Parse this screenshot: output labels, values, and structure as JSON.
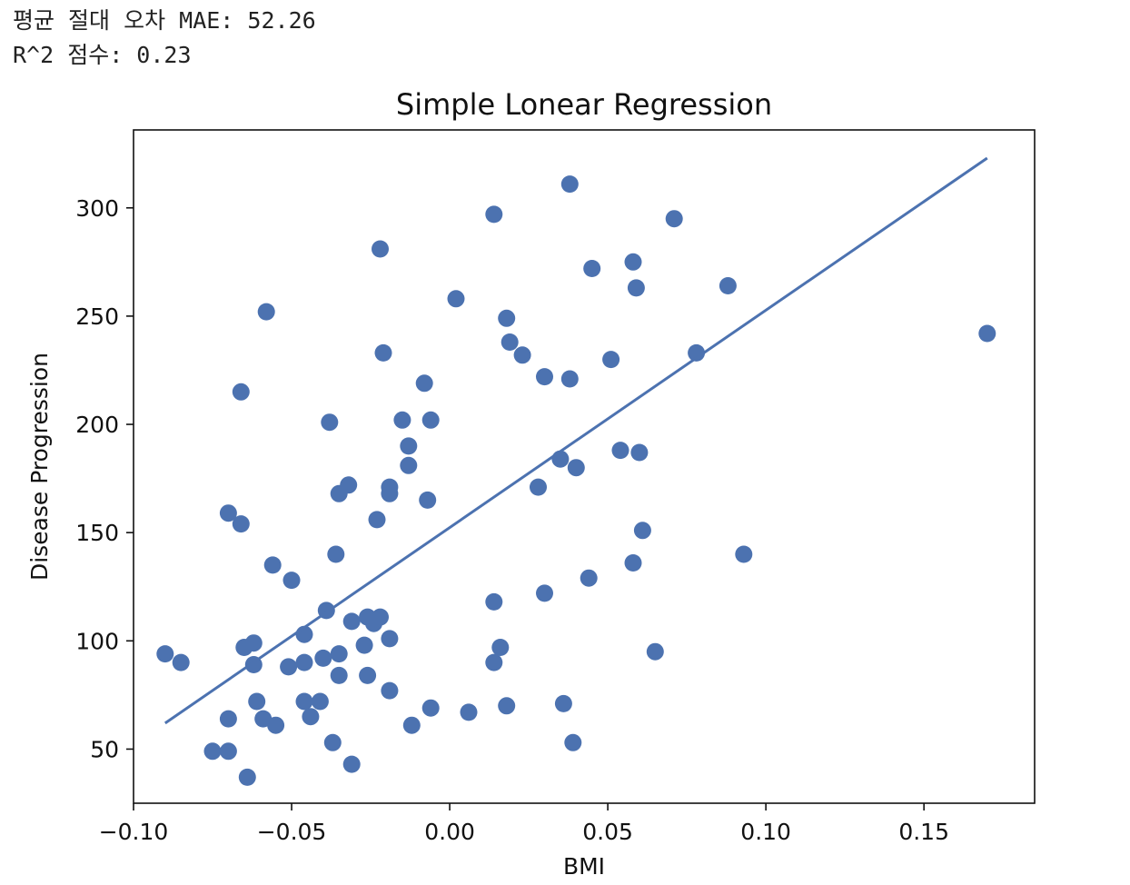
{
  "console": {
    "line1": "평균 절대 오차 MAE: 52.26",
    "line2": "R^2 점수: 0.23"
  },
  "chart_data": {
    "type": "scatter",
    "title": "Simple Lonear Regression",
    "xlabel": "BMI",
    "ylabel": "Disease Progression",
    "xlim": [
      -0.1,
      0.185
    ],
    "ylim": [
      25,
      336
    ],
    "xticks": [
      -0.1,
      -0.05,
      0.0,
      0.05,
      0.1,
      0.15
    ],
    "xtick_labels": [
      "−0.10",
      "−0.05",
      "0.00",
      "0.05",
      "0.10",
      "0.15"
    ],
    "yticks": [
      50,
      100,
      150,
      200,
      250,
      300
    ],
    "ytick_labels": [
      "50",
      "100",
      "150",
      "200",
      "250",
      "300"
    ],
    "grid": false,
    "point_color": "#4c72b0",
    "line_color": "#4c72b0",
    "points": [
      [
        -0.09,
        94
      ],
      [
        -0.085,
        90
      ],
      [
        -0.075,
        49
      ],
      [
        -0.07,
        49
      ],
      [
        -0.07,
        64
      ],
      [
        -0.07,
        159
      ],
      [
        -0.066,
        154
      ],
      [
        -0.066,
        215
      ],
      [
        -0.065,
        97
      ],
      [
        -0.064,
        37
      ],
      [
        -0.062,
        99
      ],
      [
        -0.062,
        89
      ],
      [
        -0.061,
        72
      ],
      [
        -0.059,
        64
      ],
      [
        -0.058,
        252
      ],
      [
        -0.056,
        135
      ],
      [
        -0.055,
        61
      ],
      [
        -0.051,
        88
      ],
      [
        -0.05,
        128
      ],
      [
        -0.046,
        103
      ],
      [
        -0.046,
        90
      ],
      [
        -0.046,
        72
      ],
      [
        -0.044,
        65
      ],
      [
        -0.041,
        72
      ],
      [
        -0.04,
        92
      ],
      [
        -0.039,
        114
      ],
      [
        -0.037,
        53
      ],
      [
        -0.038,
        201
      ],
      [
        -0.036,
        140
      ],
      [
        -0.035,
        94
      ],
      [
        -0.035,
        84
      ],
      [
        -0.035,
        168
      ],
      [
        -0.032,
        172
      ],
      [
        -0.031,
        43
      ],
      [
        -0.031,
        109
      ],
      [
        -0.027,
        98
      ],
      [
        -0.026,
        111
      ],
      [
        -0.026,
        84
      ],
      [
        -0.024,
        108
      ],
      [
        -0.023,
        156
      ],
      [
        -0.022,
        281
      ],
      [
        -0.022,
        111
      ],
      [
        -0.021,
        233
      ],
      [
        -0.019,
        101
      ],
      [
        -0.019,
        77
      ],
      [
        -0.019,
        168
      ],
      [
        -0.019,
        171
      ],
      [
        -0.015,
        202
      ],
      [
        -0.013,
        190
      ],
      [
        -0.013,
        181
      ],
      [
        -0.012,
        61
      ],
      [
        -0.008,
        219
      ],
      [
        -0.007,
        165
      ],
      [
        -0.006,
        202
      ],
      [
        -0.006,
        69
      ],
      [
        0.002,
        258
      ],
      [
        0.006,
        67
      ],
      [
        0.014,
        297
      ],
      [
        0.014,
        118
      ],
      [
        0.014,
        90
      ],
      [
        0.016,
        97
      ],
      [
        0.018,
        70
      ],
      [
        0.018,
        249
      ],
      [
        0.019,
        238
      ],
      [
        0.023,
        232
      ],
      [
        0.028,
        171
      ],
      [
        0.03,
        222
      ],
      [
        0.03,
        122
      ],
      [
        0.035,
        184
      ],
      [
        0.036,
        71
      ],
      [
        0.038,
        311
      ],
      [
        0.038,
        221
      ],
      [
        0.039,
        53
      ],
      [
        0.04,
        180
      ],
      [
        0.044,
        129
      ],
      [
        0.045,
        272
      ],
      [
        0.051,
        230
      ],
      [
        0.054,
        188
      ],
      [
        0.058,
        275
      ],
      [
        0.058,
        136
      ],
      [
        0.059,
        263
      ],
      [
        0.06,
        187
      ],
      [
        0.061,
        151
      ],
      [
        0.065,
        95
      ],
      [
        0.071,
        295
      ],
      [
        0.078,
        233
      ],
      [
        0.088,
        264
      ],
      [
        0.093,
        140
      ],
      [
        0.17,
        242
      ]
    ],
    "regression_line": {
      "x": [
        -0.09,
        0.17
      ],
      "y": [
        62,
        323
      ]
    }
  }
}
